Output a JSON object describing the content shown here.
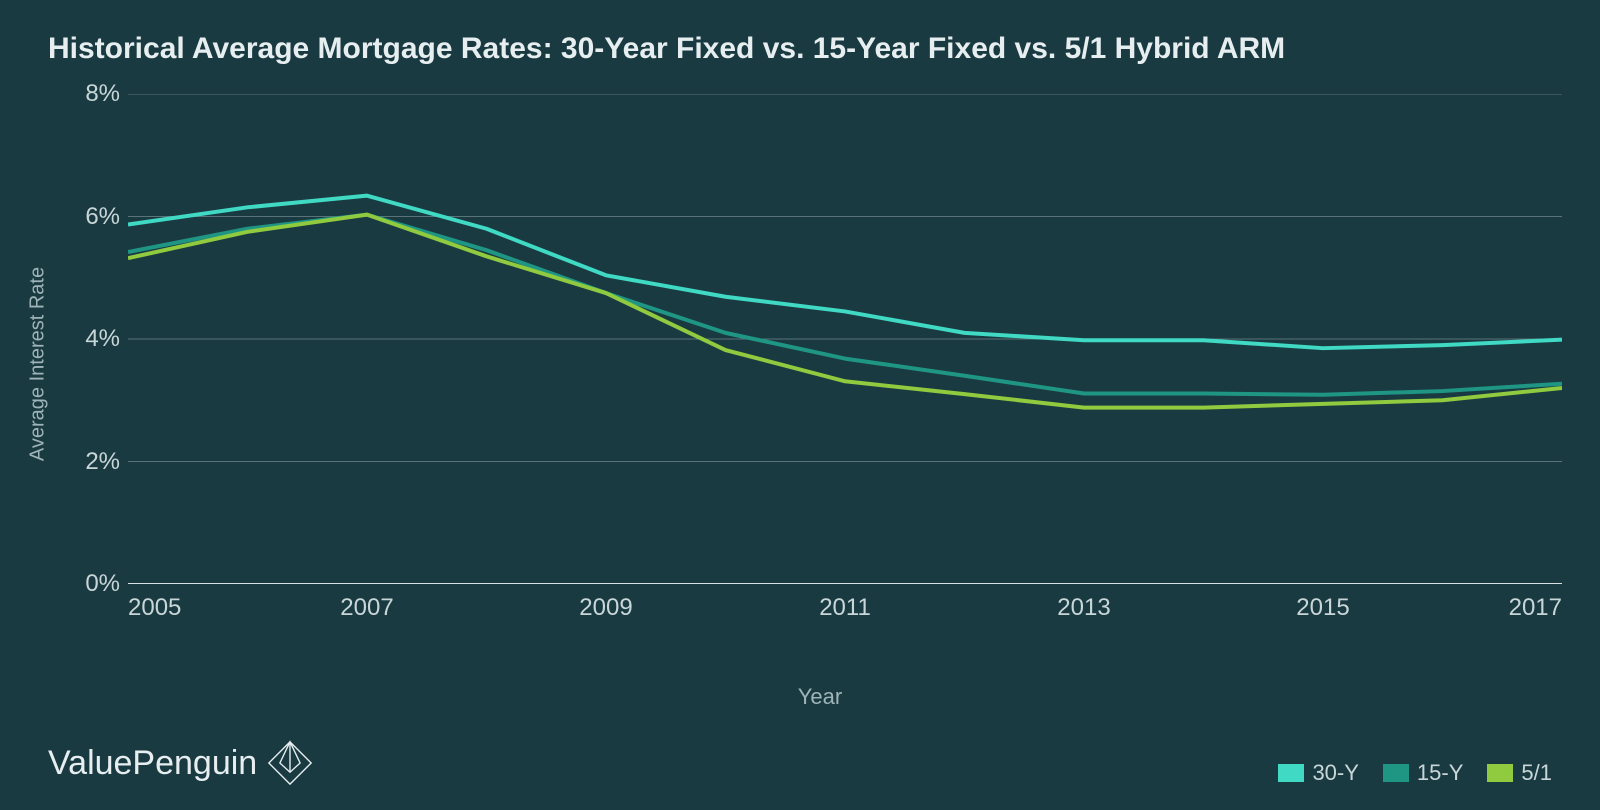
{
  "title": "Historical Average Mortgage Rates: 30-Year Fixed vs. 15-Year Fixed vs. 5/1 Hybrid ARM",
  "chart": {
    "type": "line",
    "background_color": "#1a3a42",
    "title_color": "#e6eef0",
    "title_fontsize": 30,
    "axis_label_color": "#9fb4b8",
    "tick_color": "#c8d6d8",
    "tick_fontsize": 24,
    "grid_color": "#5a7378",
    "axis_line_color": "#d8e2e4",
    "line_width": 4,
    "ylabel": "Average Interest Rate",
    "xlabel": "Year",
    "ylim": [
      0,
      8
    ],
    "ytick_step": 2,
    "ytick_suffix": "%",
    "x_values": [
      2005,
      2006,
      2007,
      2008,
      2009,
      2010,
      2011,
      2012,
      2013,
      2014,
      2015,
      2016,
      2017
    ],
    "xlim": [
      2005,
      2017
    ],
    "xtick_positions": [
      2005,
      2007,
      2009,
      2011,
      2013,
      2015,
      2017
    ],
    "series": [
      {
        "name": "30-Y",
        "color": "#3fd9c4",
        "values": [
          5.87,
          6.15,
          6.34,
          5.8,
          5.04,
          4.69,
          4.45,
          4.1,
          3.98,
          3.98,
          3.85,
          3.9,
          3.99
        ]
      },
      {
        "name": "15-Y",
        "color": "#1f9684",
        "values": [
          5.42,
          5.8,
          6.03,
          5.45,
          4.75,
          4.1,
          3.68,
          3.4,
          3.11,
          3.11,
          3.09,
          3.15,
          3.27
        ]
      },
      {
        "name": "5/1",
        "color": "#8fca3f",
        "values": [
          5.32,
          5.75,
          6.03,
          5.35,
          4.75,
          3.82,
          3.31,
          3.1,
          2.88,
          2.88,
          2.94,
          3.0,
          3.2
        ]
      }
    ]
  },
  "legend": {
    "items": [
      {
        "label": "30-Y",
        "color": "#3fd9c4"
      },
      {
        "label": "15-Y",
        "color": "#1f9684"
      },
      {
        "label": "5/1",
        "color": "#8fca3f"
      }
    ]
  },
  "brand": {
    "name": "ValuePenguin"
  }
}
